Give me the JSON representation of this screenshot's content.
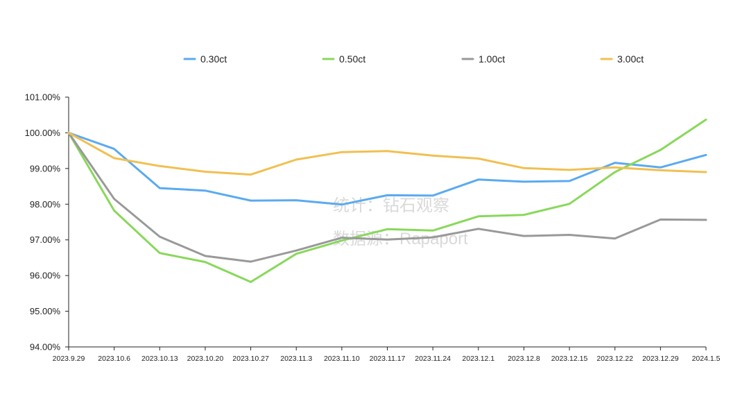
{
  "watermark": {
    "line1": "统计：钻石观察",
    "line2": "数据源：Rapaport"
  },
  "chart_data": {
    "type": "line",
    "title": "",
    "xlabel": "",
    "ylabel": "",
    "ylim": [
      94,
      101
    ],
    "y_ticks": [
      "94.00%",
      "95.00%",
      "96.00%",
      "97.00%",
      "98.00%",
      "99.00%",
      "100.00%",
      "101.00%"
    ],
    "x": [
      "2023.9.29",
      "2023.10.6",
      "2023.10.13",
      "2023.10.20",
      "2023.10.27",
      "2023.11.3",
      "2023.11.10",
      "2023.11.17",
      "2023.11.24",
      "2023.12.1",
      "2023.12.8",
      "2023.12.15",
      "2023.12.22",
      "2023.12.29",
      "2024.1.5"
    ],
    "grid": false,
    "legend_position": "top",
    "series": [
      {
        "name": "0.30ct",
        "color": "#5aaaf0",
        "values": [
          100.0,
          99.55,
          98.45,
          98.38,
          98.1,
          98.11,
          97.99,
          98.25,
          98.24,
          98.69,
          98.63,
          98.65,
          99.16,
          99.03,
          99.38
        ]
      },
      {
        "name": "0.50ct",
        "color": "#88d85a",
        "values": [
          100.0,
          97.82,
          96.63,
          96.38,
          95.82,
          96.61,
          96.98,
          97.3,
          97.26,
          97.66,
          97.7,
          98.01,
          98.9,
          99.52,
          100.37
        ]
      },
      {
        "name": "1.00ct",
        "color": "#999999",
        "values": [
          100.0,
          98.15,
          97.09,
          96.55,
          96.39,
          96.7,
          97.06,
          97.01,
          97.07,
          97.31,
          97.11,
          97.14,
          97.04,
          97.57,
          97.56
        ]
      },
      {
        "name": "3.00ct",
        "color": "#f0c050",
        "values": [
          100.0,
          99.29,
          99.07,
          98.91,
          98.83,
          99.25,
          99.46,
          99.49,
          99.36,
          99.28,
          99.01,
          98.96,
          99.03,
          98.95,
          98.9
        ]
      }
    ]
  }
}
